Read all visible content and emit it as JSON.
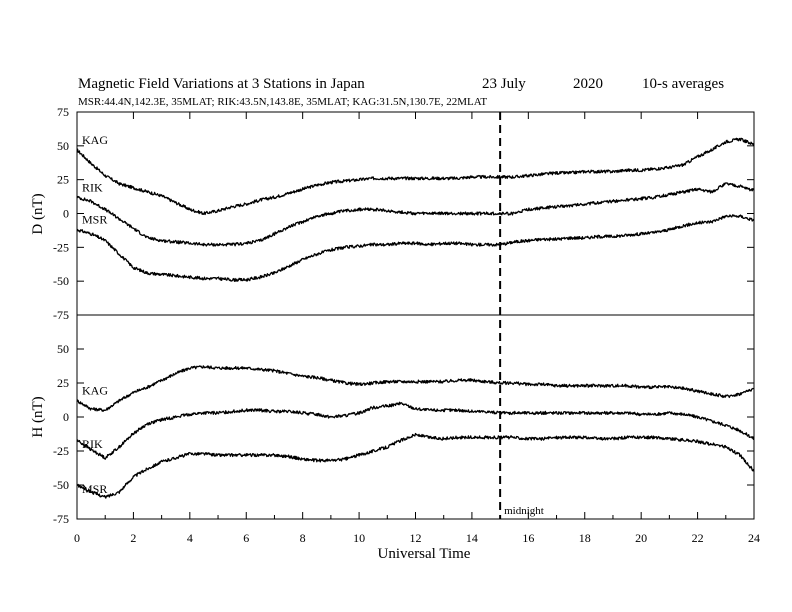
{
  "title": "Magnetic Field Variations at 3 Stations in Japan",
  "date_label": "23 July",
  "year_label": "2020",
  "avg_label": "10-s averages",
  "subtitle": "MSR:44.4N,142.3E, 35MLAT;  RIK:43.5N,143.8E, 35MLAT;  KAG:31.5N,130.7E, 22MLAT",
  "colors": {
    "line": "#000000",
    "background": "#ffffff"
  },
  "chart_data": [
    {
      "type": "line",
      "panel": "top",
      "ylabel": "D (nT)",
      "ylim": [
        -75,
        75
      ],
      "yticks": [
        75,
        50,
        25,
        0,
        -25,
        -50,
        -75
      ],
      "xlim": [
        0,
        24
      ],
      "grid": false,
      "marker": {
        "label": "midnight",
        "x": 15,
        "style": "dashed"
      },
      "series": [
        {
          "name": "KAG",
          "x": [
            0,
            0.5,
            1,
            1.5,
            2,
            2.5,
            3,
            3.5,
            4,
            4.5,
            5,
            5.5,
            6,
            6.5,
            7,
            7.5,
            8,
            8.5,
            9,
            9.5,
            10,
            10.5,
            11,
            11.5,
            12,
            12.5,
            13,
            13.5,
            14,
            14.5,
            15,
            15.5,
            16,
            16.5,
            17,
            17.5,
            18,
            18.5,
            19,
            19.5,
            20,
            20.5,
            21,
            21.5,
            22,
            22.5,
            23,
            23.5,
            24
          ],
          "values": [
            47,
            37,
            28,
            22,
            19,
            16,
            13,
            8,
            3,
            0,
            2,
            5,
            7,
            10,
            12,
            15,
            18,
            21,
            23,
            24,
            25,
            26,
            26,
            26,
            26,
            26,
            26,
            26,
            27,
            27,
            27,
            27,
            28,
            29,
            30,
            30,
            31,
            31,
            31,
            32,
            32,
            33,
            34,
            36,
            42,
            47,
            53,
            55,
            51
          ]
        },
        {
          "name": "RIK",
          "x": [
            0,
            0.5,
            1,
            1.5,
            2,
            2.5,
            3,
            3.5,
            4,
            4.5,
            5,
            5.5,
            6,
            6.5,
            7,
            7.5,
            8,
            8.5,
            9,
            9.5,
            10,
            10.5,
            11,
            11.5,
            12,
            12.5,
            13,
            13.5,
            14,
            14.5,
            15,
            15.5,
            16,
            16.5,
            17,
            17.5,
            18,
            18.5,
            19,
            19.5,
            20,
            20.5,
            21,
            21.5,
            22,
            22.5,
            23,
            23.5,
            24
          ],
          "values": [
            12,
            9,
            3,
            -4,
            -11,
            -18,
            -20,
            -21,
            -22,
            -23,
            -23,
            -23,
            -22,
            -20,
            -15,
            -10,
            -6,
            -2,
            0,
            2,
            3,
            3,
            2,
            1,
            0,
            0,
            0,
            0,
            0,
            0,
            0,
            0,
            3,
            4,
            5,
            6,
            7,
            8,
            9,
            10,
            11,
            12,
            14,
            16,
            18,
            16,
            22,
            20,
            17
          ]
        },
        {
          "name": "MSR",
          "x": [
            0,
            0.5,
            1,
            1.5,
            2,
            2.5,
            3,
            3.5,
            4,
            4.5,
            5,
            5.5,
            6,
            6.5,
            7,
            7.5,
            8,
            8.5,
            9,
            9.5,
            10,
            10.5,
            11,
            11.5,
            12,
            12.5,
            13,
            13.5,
            14,
            14.5,
            15,
            15.5,
            16,
            16.5,
            17,
            17.5,
            18,
            18.5,
            19,
            19.5,
            20,
            20.5,
            21,
            21.5,
            22,
            22.5,
            23,
            23.5,
            24
          ],
          "values": [
            -12,
            -15,
            -20,
            -30,
            -40,
            -44,
            -45,
            -46,
            -47,
            -48,
            -48,
            -49,
            -49,
            -47,
            -44,
            -39,
            -34,
            -30,
            -27,
            -25,
            -24,
            -23,
            -23,
            -22,
            -22,
            -23,
            -22,
            -22,
            -23,
            -23,
            -23,
            -21,
            -20,
            -19,
            -19,
            -18,
            -18,
            -17,
            -17,
            -16,
            -15,
            -14,
            -12,
            -9,
            -7,
            -6,
            -2,
            -2,
            -5
          ]
        }
      ]
    },
    {
      "type": "line",
      "panel": "bottom",
      "ylabel": "H (nT)",
      "xlabel": "Universal Time",
      "ylim": [
        -75,
        75
      ],
      "yticks": [
        50,
        25,
        0,
        -25,
        -50,
        -75
      ],
      "xlim": [
        0,
        24
      ],
      "xticks": [
        0,
        2,
        4,
        6,
        8,
        10,
        12,
        14,
        16,
        18,
        20,
        22,
        24
      ],
      "grid": false,
      "series": [
        {
          "name": "KAG",
          "x": [
            0,
            0.5,
            1,
            1.5,
            2,
            2.5,
            3,
            3.5,
            4,
            4.5,
            5,
            5.5,
            6,
            6.5,
            7,
            7.5,
            8,
            8.5,
            9,
            9.5,
            10,
            10.5,
            11,
            11.5,
            12,
            12.5,
            13,
            13.5,
            14,
            14.5,
            15,
            15.5,
            16,
            16.5,
            17,
            17.5,
            18,
            18.5,
            19,
            19.5,
            20,
            20.5,
            21,
            21.5,
            22,
            22.5,
            23,
            23.5,
            24
          ],
          "values": [
            12,
            6,
            5,
            12,
            18,
            22,
            27,
            32,
            36,
            37,
            36,
            36,
            36,
            35,
            34,
            32,
            30,
            29,
            27,
            25,
            24,
            25,
            26,
            26,
            26,
            26,
            26,
            27,
            27,
            26,
            25,
            25,
            24,
            24,
            23,
            23,
            23,
            23,
            23,
            23,
            22,
            22,
            22,
            21,
            19,
            17,
            15,
            17,
            21
          ]
        },
        {
          "name": "RIK",
          "x": [
            0,
            0.5,
            1,
            1.5,
            2,
            2.5,
            3,
            3.5,
            4,
            4.5,
            5,
            5.5,
            6,
            6.5,
            7,
            7.5,
            8,
            8.5,
            9,
            9.5,
            10,
            10.5,
            11,
            11.5,
            12,
            12.5,
            13,
            13.5,
            14,
            14.5,
            15,
            15.5,
            16,
            16.5,
            17,
            17.5,
            18,
            18.5,
            19,
            19.5,
            20,
            20.5,
            21,
            21.5,
            22,
            22.5,
            23,
            23.5,
            24
          ],
          "values": [
            -17,
            -24,
            -30,
            -22,
            -12,
            -5,
            -2,
            0,
            2,
            3,
            3,
            4,
            5,
            5,
            4,
            4,
            3,
            2,
            0,
            1,
            3,
            7,
            8,
            10,
            6,
            5,
            5,
            5,
            4,
            4,
            3,
            3,
            3,
            3,
            3,
            3,
            3,
            3,
            3,
            3,
            2,
            2,
            3,
            2,
            0,
            -3,
            -6,
            -10,
            -16
          ]
        },
        {
          "name": "MSR",
          "x": [
            0,
            0.5,
            1,
            1.5,
            2,
            2.5,
            3,
            3.5,
            4,
            4.5,
            5,
            5.5,
            6,
            6.5,
            7,
            7.5,
            8,
            8.5,
            9,
            9.5,
            10,
            10.5,
            11,
            11.5,
            12,
            12.5,
            13,
            13.5,
            14,
            14.5,
            15,
            15.5,
            16,
            16.5,
            17,
            17.5,
            18,
            18.5,
            19,
            19.5,
            20,
            20.5,
            21,
            21.5,
            22,
            22.5,
            23,
            23.5,
            24
          ],
          "values": [
            -50,
            -55,
            -59,
            -55,
            -44,
            -38,
            -33,
            -30,
            -27,
            -27,
            -28,
            -28,
            -28,
            -28,
            -28,
            -29,
            -31,
            -32,
            -32,
            -31,
            -28,
            -25,
            -22,
            -17,
            -13,
            -15,
            -16,
            -15,
            -15,
            -15,
            -15,
            -15,
            -16,
            -16,
            -15,
            -15,
            -15,
            -16,
            -16,
            -15,
            -15,
            -15,
            -16,
            -17,
            -18,
            -20,
            -22,
            -28,
            -40
          ]
        }
      ]
    }
  ]
}
